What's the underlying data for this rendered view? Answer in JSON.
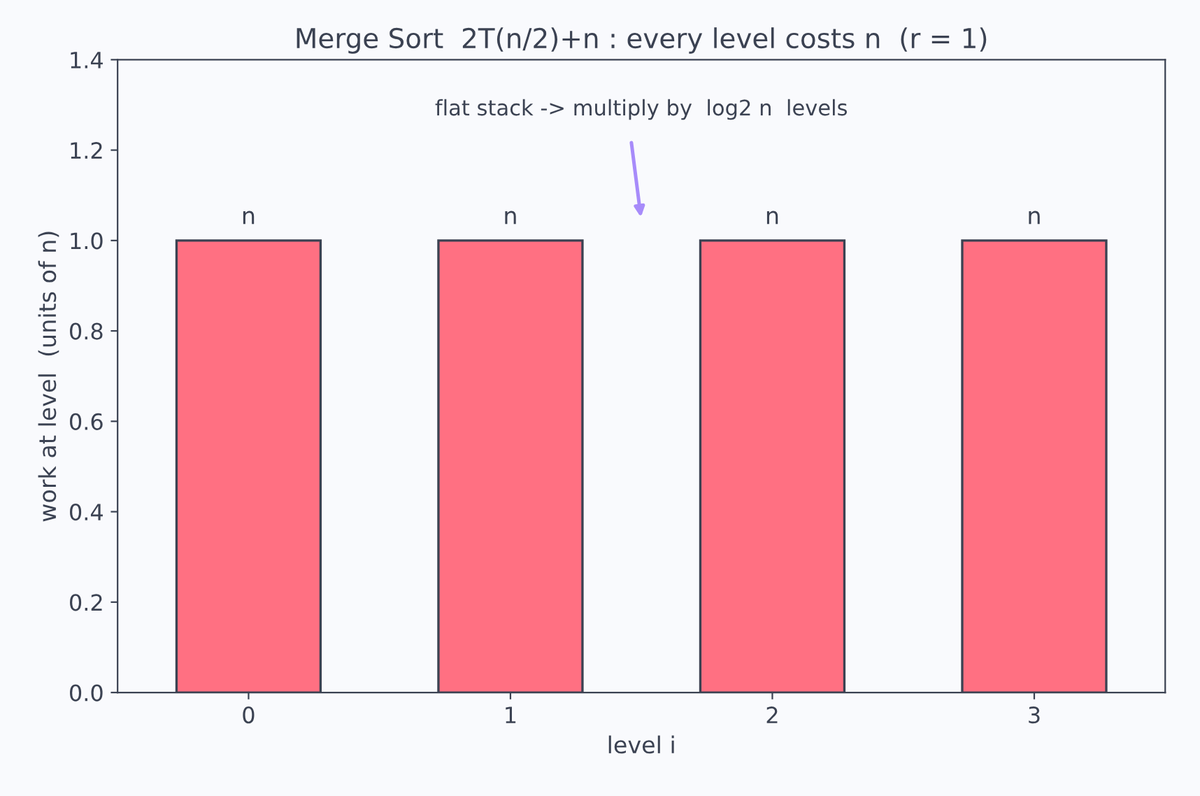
{
  "chart_data": {
    "type": "bar",
    "title": "Merge Sort  2T(n/2)+n : every level costs n  (r = 1)",
    "xlabel": "level i",
    "ylabel": "work at level  (units of n)",
    "categories": [
      "0",
      "1",
      "2",
      "3"
    ],
    "values": [
      1.0,
      1.0,
      1.0,
      1.0
    ],
    "value_labels": [
      "n",
      "n",
      "n",
      "n"
    ],
    "color": "#ff7082",
    "ylim": [
      0,
      1.4
    ],
    "yticks": [
      {
        "value": 0,
        "label": "0.0"
      },
      0.2,
      0.4,
      0.6,
      0.8,
      {
        "value": 1,
        "label": "1.0"
      },
      1.2,
      1.4
    ],
    "grid": false,
    "annotations": [
      "flat stack -> multiply by  log2 n  levels"
    ]
  }
}
